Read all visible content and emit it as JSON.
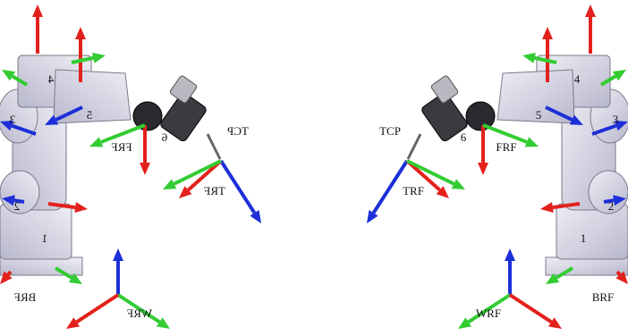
{
  "views": [
    {
      "frames": {
        "tcp": "TCP",
        "frf": "FRF",
        "trf": "TRF",
        "brf": "BRF",
        "wrf": "WRF"
      },
      "joints": [
        "1",
        "2",
        "3",
        "4",
        "5",
        "6"
      ]
    },
    {
      "frames": {
        "tcp": "TCP",
        "frf": "FRF",
        "trf": "TRF",
        "brf": "BRF",
        "wrf": "WRF"
      },
      "joints": [
        "1",
        "2",
        "3",
        "4",
        "5",
        "6"
      ]
    }
  ]
}
